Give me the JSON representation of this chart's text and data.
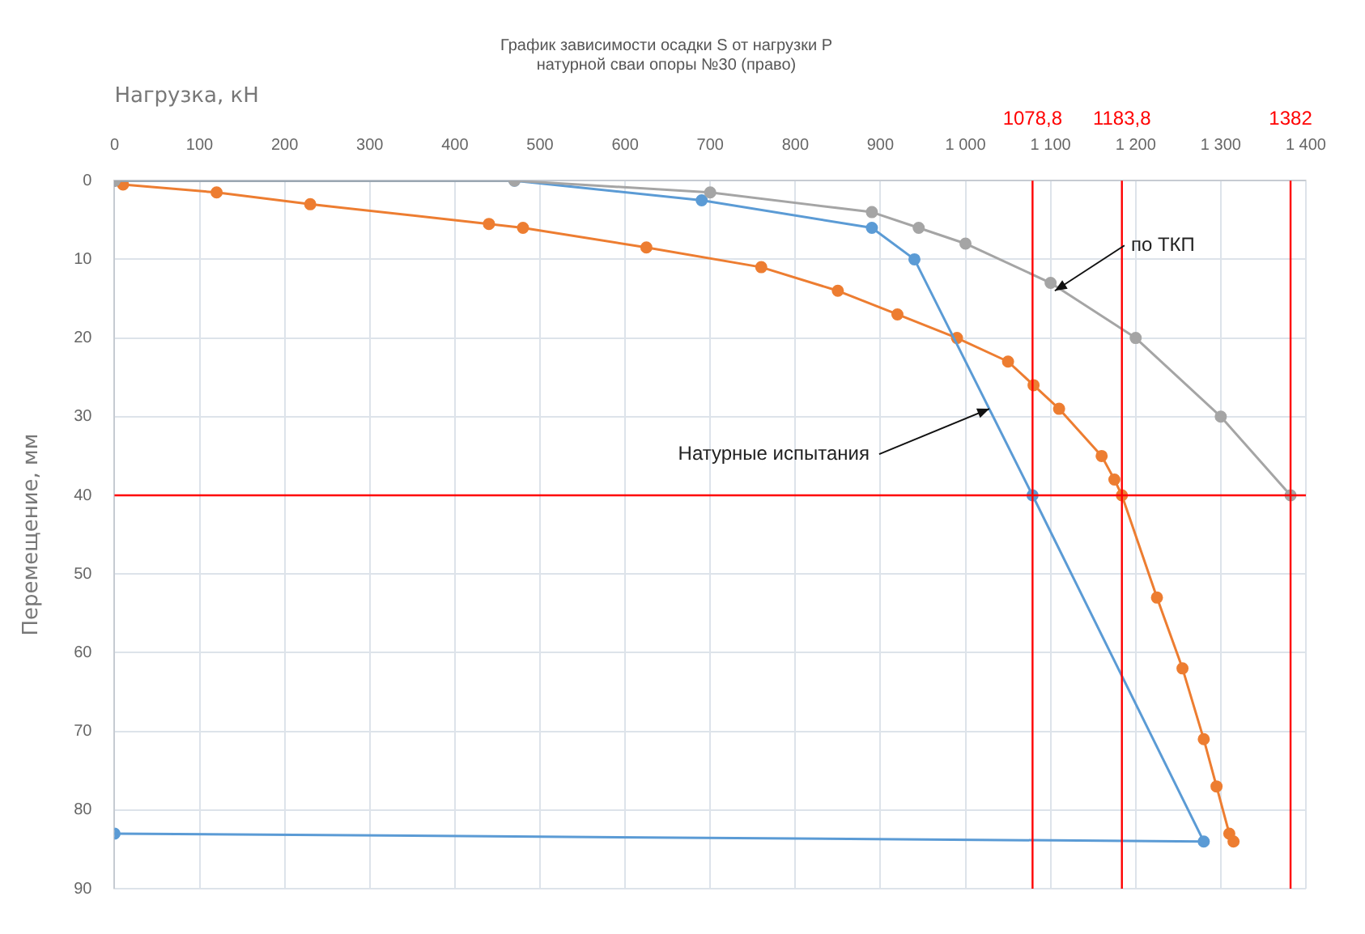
{
  "chart_data": {
    "type": "line",
    "title": "График зависимости осадки S от нагрузки P\nнатурной сваи опоры №30 (право)",
    "xlabel": "Нагрузка, кН",
    "ylabel": "Перемещение, мм",
    "xlim": [
      0,
      1400
    ],
    "xticks": [
      0,
      100,
      200,
      300,
      400,
      500,
      600,
      700,
      800,
      900,
      {
        "value": 1000,
        "label": "1 000"
      },
      {
        "value": 1100,
        "label": "1 100"
      },
      {
        "value": 1200,
        "label": "1 200"
      },
      {
        "value": 1300,
        "label": "1 300"
      },
      {
        "value": 1400,
        "label": "1 400"
      }
    ],
    "ylim": [
      90,
      0
    ],
    "yticks": [
      0,
      10,
      20,
      30,
      40,
      50,
      60,
      70,
      80,
      90
    ],
    "series": [
      {
        "color": "#a5a5a5",
        "x": [
          0,
          470,
          700,
          890,
          945,
          1000,
          1100,
          1200,
          1300,
          1382
        ],
        "values": [
          0,
          0,
          1.5,
          4,
          6,
          8,
          13,
          20,
          30,
          40
        ]
      },
      {
        "color": "#5b9bd5",
        "x": [
          0,
          470,
          690,
          890,
          940,
          1078.8,
          1280,
          0
        ],
        "values": [
          0,
          0,
          2.5,
          6,
          10,
          40,
          84,
          83
        ]
      },
      {
        "color": "#ed7d31",
        "x": [
          0,
          10,
          120,
          230,
          440,
          480,
          625,
          760,
          850,
          920,
          990,
          1050,
          1080,
          1110,
          1160,
          1175,
          1183.8,
          1225,
          1255,
          1280,
          1295,
          1310,
          1315
        ],
        "values": [
          0,
          0.5,
          1.5,
          3,
          5.5,
          6,
          8.5,
          11,
          14,
          17,
          20,
          23,
          26,
          29,
          35,
          38,
          40,
          53,
          62,
          71,
          77,
          83,
          84
        ]
      }
    ],
    "ref_lines": [
      {
        "axis": "x",
        "value": 1078.8,
        "label": "1078,8",
        "color": "#ff0000"
      },
      {
        "axis": "x",
        "value": 1183.8,
        "label": "1183,8",
        "color": "#ff0000"
      },
      {
        "axis": "x",
        "value": 1382,
        "label": "1382",
        "color": "#ff0000"
      },
      {
        "axis": "y",
        "value": 40,
        "color": "#ff0000"
      }
    ],
    "annotations": [
      {
        "text": "по ТКП",
        "x": 1105,
        "y": 14
      },
      {
        "text": "Натурные испытания",
        "x": 1028,
        "y": 29
      }
    ],
    "grid": true,
    "marker": "circle",
    "line_style": "solid",
    "legend": false
  }
}
